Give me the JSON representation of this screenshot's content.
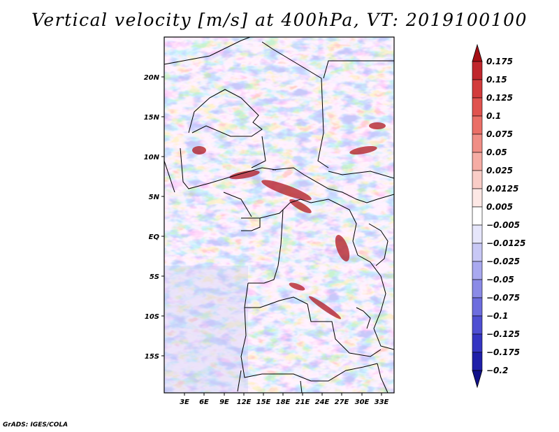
{
  "title": "Vertical velocity [m/s] at 400hPa, VT: 2019100100",
  "credit": "GrADS: IGES/COLA",
  "lat_labels": [
    "20N",
    "15N",
    "10N",
    "5N",
    "EQ",
    "5S",
    "10S",
    "15S"
  ],
  "lon_labels": [
    "3E",
    "6E",
    "9E",
    "12E",
    "15E",
    "18E",
    "21E",
    "24E",
    "27E",
    "30E",
    "33E"
  ],
  "colorbar": {
    "levels": [
      "0.175",
      "0.15",
      "0.125",
      "0.1",
      "0.075",
      "0.05",
      "0.025",
      "0.0125",
      "0.005",
      "−0.005",
      "−0.0125",
      "−0.025",
      "−0.05",
      "−0.075",
      "−0.1",
      "−0.125",
      "−0.175",
      "−0.2"
    ],
    "colors": [
      "#a50f15",
      "#c0272d",
      "#d23c3c",
      "#e0534f",
      "#ea6f67",
      "#f08e86",
      "#f5aca4",
      "#f9cdc7",
      "#fde8e5",
      "#ffffff",
      "#e6e6fb",
      "#c8c8f5",
      "#a9a9ef",
      "#8b8be6",
      "#6d6dde",
      "#4f4fd2",
      "#3535c2",
      "#1f1fa8",
      "#12128a"
    ]
  }
}
